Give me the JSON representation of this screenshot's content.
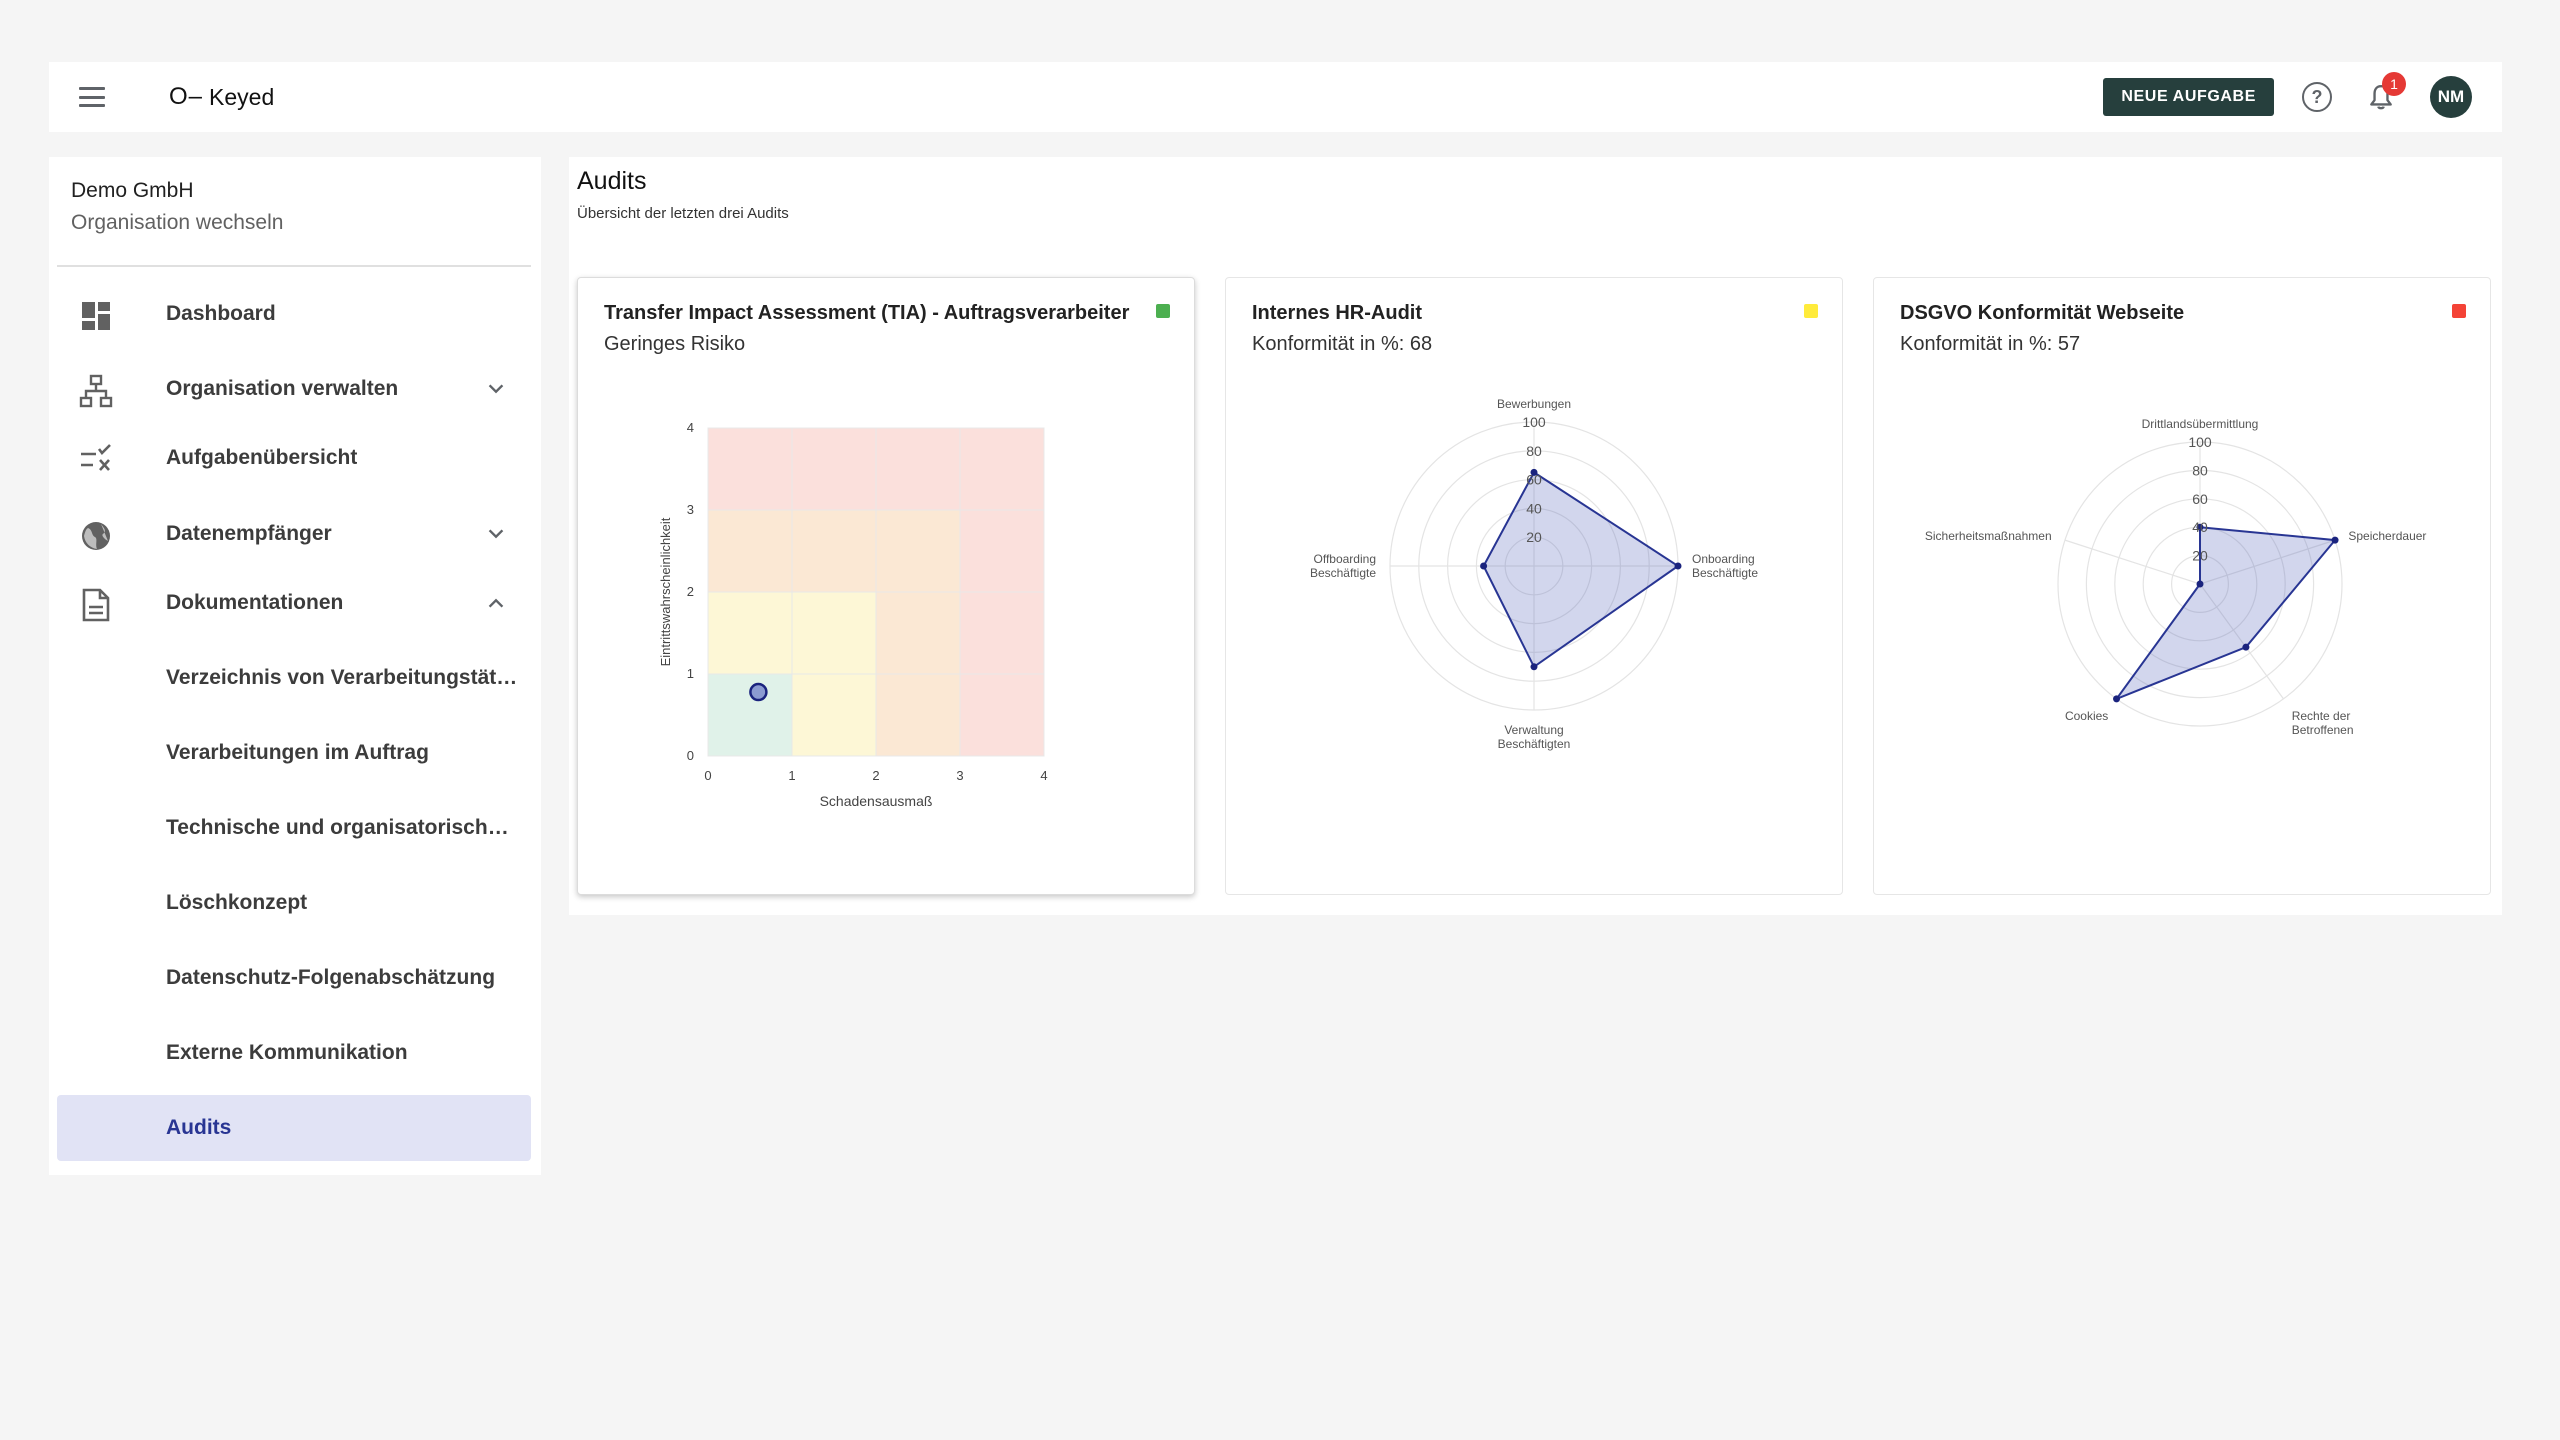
{
  "topbar": {
    "logo_mark": "O–",
    "logo_text": "Keyed",
    "new_task_label": "NEUE AUFGABE",
    "help_glyph": "?",
    "notification_count": "1",
    "avatar_initials": "NM",
    "icons": [
      "menu-icon",
      "help-icon",
      "bell-icon"
    ]
  },
  "sidebar": {
    "org_name": "Demo GmbH",
    "org_switch": "Organisation wechseln",
    "items": [
      {
        "label": "Dashboard",
        "icon": "dashboard-icon"
      },
      {
        "label": "Organisation verwalten",
        "icon": "org-chart-icon",
        "expandable": true,
        "expanded": false
      },
      {
        "label": "Aufgabenübersicht",
        "icon": "task-list-icon"
      },
      {
        "label": "Datenempfänger",
        "icon": "globe-icon",
        "expandable": true,
        "expanded": false
      },
      {
        "label": "Dokumentationen",
        "icon": "document-icon",
        "expandable": true,
        "expanded": true
      }
    ],
    "sub_items": [
      {
        "label": "Verzeichnis von Verarbeitungstätigkeiten"
      },
      {
        "label": "Verarbeitungen im Auftrag"
      },
      {
        "label": "Technische und organisatorische Maßnahmen"
      },
      {
        "label": "Löschkonzept"
      },
      {
        "label": "Datenschutz-Folgenabschätzung"
      },
      {
        "label": "Externe Kommunikation"
      },
      {
        "label": "Audits",
        "active": true
      }
    ]
  },
  "main": {
    "title": "Audits",
    "subtitle": "Übersicht der letzten drei Audits",
    "cards": [
      {
        "title": "Transfer Impact Assessment (TIA) - Auftragsverarbeiter",
        "subtitle": "Geringes Risiko",
        "status_color": "#4caf50"
      },
      {
        "title": "Internes HR-Audit",
        "subtitle": "Konformität in %: 68",
        "status_color": "#ffeb3b"
      },
      {
        "title": "DSGVO Konformität Webseite",
        "subtitle": "Konformität in %: 57",
        "status_color": "#f44336"
      }
    ]
  },
  "chart_data": [
    {
      "type": "scatter",
      "xlabel": "Schadensausmaß",
      "ylabel": "Eintrittswahrscheinlichkeit",
      "xlim": [
        0,
        4
      ],
      "ylim": [
        0,
        4
      ],
      "x_ticks": [
        "0",
        "1",
        "2",
        "3",
        "4"
      ],
      "y_ticks": [
        "0",
        "1",
        "2",
        "3",
        "4"
      ],
      "background": "risk-matrix",
      "points": [
        {
          "x": 0.6,
          "y": 0.78
        }
      ]
    },
    {
      "type": "radar",
      "axes": [
        {
          "label": [
            "Bewerbungen"
          ],
          "value": 65
        },
        {
          "label": [
            "Onboarding",
            "Beschäftigte"
          ],
          "value": 100
        },
        {
          "label": [
            "Verwaltung",
            "Beschäftigten"
          ],
          "value": 70
        },
        {
          "label": [
            "Offboarding",
            "Beschäftigte"
          ],
          "value": 35
        }
      ],
      "r_ticks": [
        "20",
        "40",
        "60",
        "80",
        "100"
      ],
      "rmax": 100
    },
    {
      "type": "radar",
      "axes": [
        {
          "label": [
            "Drittlandsübermittlung"
          ],
          "value": 40
        },
        {
          "label": [
            "Speicherdauer"
          ],
          "value": 100
        },
        {
          "label": [
            "Rechte der",
            "Betroffenen"
          ],
          "value": 55
        },
        {
          "label": [
            "Cookies"
          ],
          "value": 100
        },
        {
          "label": [
            "Sicherheitsmaßnahmen"
          ],
          "value": 0
        }
      ],
      "r_ticks": [
        "20",
        "40",
        "60",
        "80",
        "100"
      ],
      "rmax": 100
    }
  ]
}
